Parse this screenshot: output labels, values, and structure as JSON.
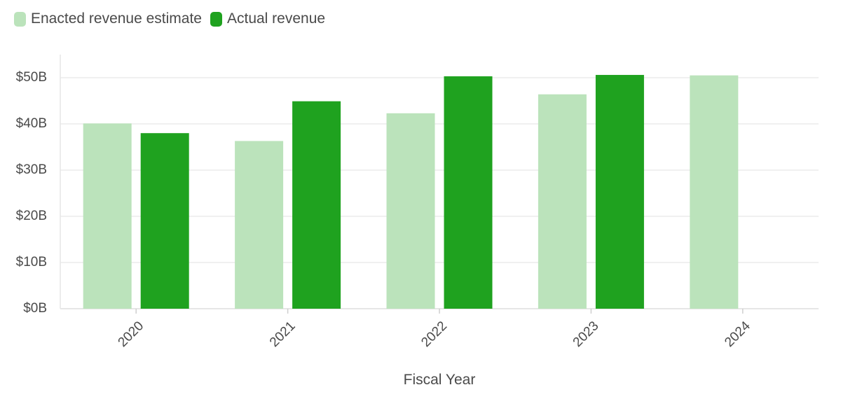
{
  "legend": [
    {
      "label": "Enacted revenue estimate",
      "color": "#bbe3bb"
    },
    {
      "label": "Actual revenue",
      "color": "#1fa21f"
    }
  ],
  "chart_data": {
    "type": "bar",
    "categories": [
      "2020",
      "2021",
      "2022",
      "2023",
      "2024"
    ],
    "series": [
      {
        "name": "Enacted revenue estimate",
        "color": "#bbe3bb",
        "values": [
          40.1,
          36.3,
          42.3,
          46.4,
          50.5
        ]
      },
      {
        "name": "Actual revenue",
        "color": "#1fa21f",
        "values": [
          38.0,
          44.9,
          50.3,
          50.6,
          null
        ]
      }
    ],
    "xlabel": "Fiscal Year",
    "ylabel": "",
    "ylim": [
      0,
      55
    ],
    "yticks": [
      0,
      10,
      20,
      30,
      40,
      50
    ],
    "ytick_labels": [
      "$0B",
      "$10B",
      "$20B",
      "$30B",
      "$40B",
      "$50B"
    ],
    "grid": true,
    "legend_position": "top-left"
  }
}
